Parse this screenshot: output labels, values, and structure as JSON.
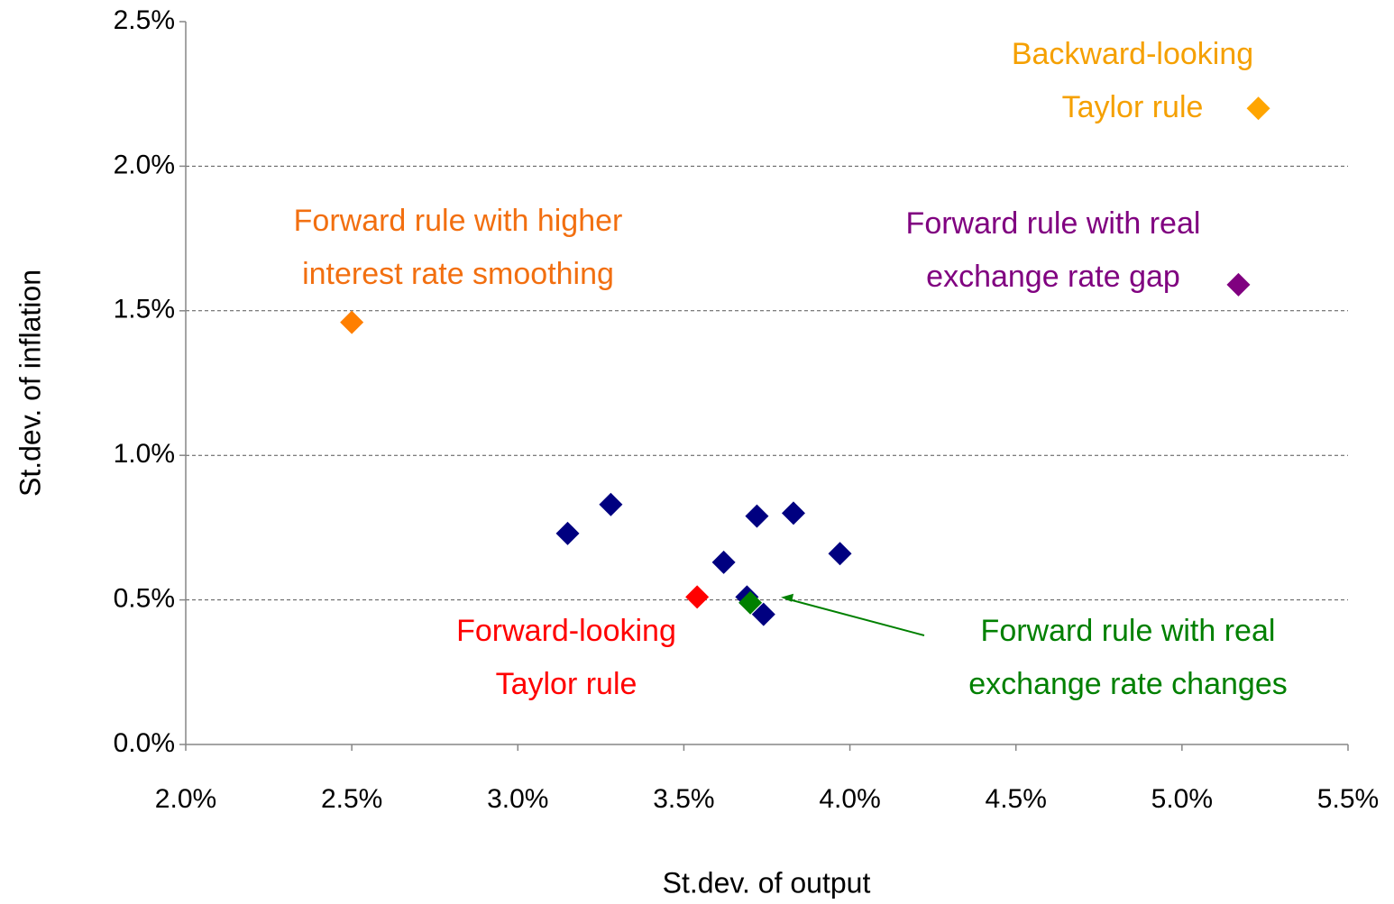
{
  "chart_data": {
    "type": "scatter",
    "x_label": "St.dev. of output",
    "y_label": "St.dev. of inflation",
    "xlim": [
      2.0,
      5.5
    ],
    "xticks": [
      {
        "value": 2.0,
        "label": "2.0%"
      },
      {
        "value": 2.5,
        "label": "2.5%"
      },
      {
        "value": 3.0,
        "label": "3.0%"
      },
      {
        "value": 3.5,
        "label": "3.5%"
      },
      {
        "value": 4.0,
        "label": "4.0%"
      },
      {
        "value": 4.5,
        "label": "4.5%"
      },
      {
        "value": 5.0,
        "label": "5.0%"
      },
      {
        "value": 5.5,
        "label": "5.5%"
      }
    ],
    "ylim": [
      0.0,
      2.5
    ],
    "yticks": [
      {
        "value": 0.0,
        "label": "0.0%"
      },
      {
        "value": 0.5,
        "label": "0.5%"
      },
      {
        "value": 1.0,
        "label": "1.0%"
      },
      {
        "value": 1.5,
        "label": "1.5%"
      },
      {
        "value": 2.0,
        "label": "2.0%"
      },
      {
        "value": 2.5,
        "label": "2.5%"
      }
    ],
    "grid": true,
    "series": [
      {
        "color": "#000080",
        "x": [
          3.15,
          3.28,
          3.62,
          3.72,
          3.83,
          3.97,
          3.69,
          3.74
        ],
        "values": [
          0.73,
          0.83,
          0.63,
          0.79,
          0.8,
          0.66,
          0.51,
          0.45
        ]
      },
      {
        "color": "#ff0000",
        "label_color": "#ff0000",
        "label": [
          "Forward-looking",
          "Taylor rule"
        ],
        "x": [
          3.54
        ],
        "values": [
          0.51
        ]
      },
      {
        "color": "#008000",
        "label_color": "#008000",
        "label": [
          "Forward rule with real",
          "exchange rate changes"
        ],
        "x": [
          3.7
        ],
        "values": [
          0.49
        ]
      },
      {
        "color": "#ff7f00",
        "label_color": "#f26f10",
        "label": [
          "Forward rule with higher",
          "interest rate smoothing"
        ],
        "x": [
          2.5
        ],
        "values": [
          1.46
        ]
      },
      {
        "color": "#800080",
        "label_color": "#800080",
        "label": [
          "Forward rule with real",
          "exchange rate gap"
        ],
        "x": [
          5.17
        ],
        "values": [
          1.59
        ]
      },
      {
        "color": "#ffa500",
        "label_color": "#f5a000",
        "label": [
          "Backward-looking",
          "Taylor rule"
        ],
        "x": [
          5.23
        ],
        "values": [
          2.2
        ]
      }
    ]
  }
}
